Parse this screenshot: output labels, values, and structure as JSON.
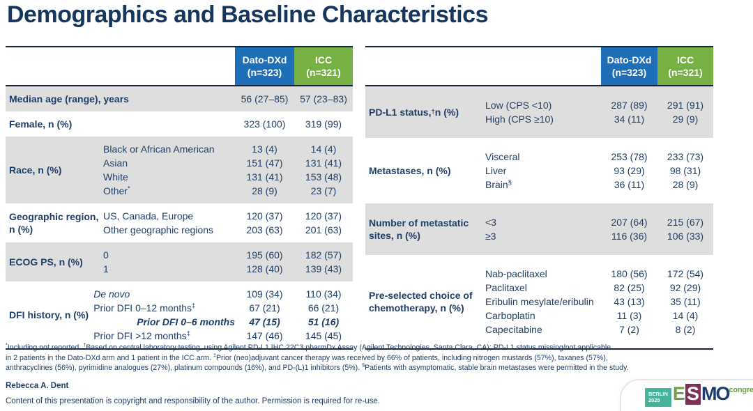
{
  "title": "Demographics and Baseline Characteristics",
  "columns": {
    "arm1_name": "Dato-DXd",
    "arm1_n": "(n=323)",
    "arm2_name": "ICC",
    "arm2_n": "(n=321)"
  },
  "colors": {
    "title_navy": "#17365D",
    "text_navy": "#1F3E66",
    "arm1_blue": "#1F6FB8",
    "arm2_green": "#77B043",
    "row_gray": "#DEDEDE",
    "rule_dark": "#16233B",
    "logo_teal": "#45B29B",
    "logo_green": "#6FA043",
    "logo_plum": "#7E3157",
    "logo_navy": "#1B3C6E"
  },
  "left_table": {
    "rows": [
      {
        "category": "Median age (range), years",
        "shade": true,
        "items": [
          {
            "label": "",
            "v1": "56 (27–85)",
            "v2": "57 (23–83)"
          }
        ]
      },
      {
        "category": "Female, n (%)",
        "shade": false,
        "items": [
          {
            "label": "",
            "v1": "323 (100)",
            "v2": "319 (99)"
          }
        ]
      },
      {
        "category": "Race, n (%)",
        "shade": true,
        "items": [
          {
            "label": "Black or African American",
            "v1": "13 (4)",
            "v2": "14 (4)"
          },
          {
            "label": "Asian",
            "v1": "151 (47)",
            "v2": "131 (41)"
          },
          {
            "label": "White",
            "v1": "131 (41)",
            "v2": "153 (48)"
          },
          {
            "label": "Other*",
            "v1": "28 (9)",
            "v2": "23 (7)"
          }
        ]
      },
      {
        "category": "Geographic region, n (%)",
        "shade": false,
        "items": [
          {
            "label": "US, Canada, Europe",
            "v1": "120 (37)",
            "v2": "120 (37)"
          },
          {
            "label": "Other geographic regions",
            "v1": "203 (63)",
            "v2": "201 (63)"
          }
        ]
      },
      {
        "category": "ECOG PS, n (%)",
        "shade": true,
        "items": [
          {
            "label": "0",
            "v1": "195 (60)",
            "v2": "182 (57)"
          },
          {
            "label": "1",
            "v1": "128 (40)",
            "v2": "139 (43)"
          }
        ]
      },
      {
        "category": "DFI history, n (%)",
        "shade": false,
        "items": [
          {
            "label": "De novo",
            "style": "italic",
            "v1": "109 (34)",
            "v2": "110 (34)"
          },
          {
            "label": "Prior DFI 0–12 months‡",
            "v1": "67 (21)",
            "v2": "66 (21)"
          },
          {
            "label": "Prior DFI 0–6 months",
            "style": "bold-italic",
            "indent": true,
            "v1": "47 (15)",
            "v2": "51 (16)"
          },
          {
            "label": "Prior DFI >12 months‡",
            "v1": "147 (46)",
            "v2": "145 (45)"
          }
        ]
      }
    ]
  },
  "right_table": {
    "rows": [
      {
        "category": "PD-L1 status,† n (%)",
        "shade": true,
        "items": [
          {
            "label": "Low (CPS <10)",
            "v1": "287 (89)",
            "v2": "291 (91)"
          },
          {
            "label": "High (CPS ≥10)",
            "v1": "34 (11)",
            "v2": "29 (9)"
          }
        ]
      },
      {
        "category": "Metastases, n (%)",
        "shade": false,
        "items": [
          {
            "label": "Visceral",
            "v1": "253 (78)",
            "v2": "233 (73)"
          },
          {
            "label": "Liver",
            "v1": "93 (29)",
            "v2": "98 (31)"
          },
          {
            "label": "Brain§",
            "v1": "36 (11)",
            "v2": "28 (9)"
          }
        ]
      },
      {
        "category": "Number of metastatic sites, n (%)",
        "shade": true,
        "items": [
          {
            "label": "<3",
            "v1": "207 (64)",
            "v2": "215 (67)"
          },
          {
            "label": "≥3",
            "v1": "116 (36)",
            "v2": "106 (33)"
          }
        ]
      },
      {
        "category": "Pre-selected choice of chemotherapy, n (%)",
        "shade": false,
        "items": [
          {
            "label": "Nab-paclitaxel",
            "v1": "180 (56)",
            "v2": "172 (54)"
          },
          {
            "label": "Paclitaxel",
            "v1": "82 (25)",
            "v2": "92 (29)"
          },
          {
            "label": "Eribulin mesylate/eribulin",
            "v1": "43 (13)",
            "v2": "35 (11)"
          },
          {
            "label": "Carboplatin",
            "v1": "11 (3)",
            "v2": "14 (4)"
          },
          {
            "label": "Capecitabine",
            "v1": "7 (2)",
            "v2": "8 (2)"
          }
        ]
      }
    ]
  },
  "footnotes": [
    "*Including not reported. †Based on central laboratory testing, using Agilent PD-L1 IHC 22C3 pharmDx Assay (Agilent Technologies, Santa Clara, CA); PD-L1 status missing/not applicable",
    "in 2 patients in the Dato-DXd arm and 1 patient in the ICC arm. ‡Prior (neo)adjuvant cancer therapy was received by 66% of patients, including nitrogen mustards (57%), taxanes (57%),",
    "anthracyclines (56%), pyrimidine analogues (27%), platinum compounds (16%), and PD-(L)1 inhibitors (5%). §Patients with asymptomatic, stable brain metastases were permitted in the study."
  ],
  "author": "Rebecca A. Dent",
  "copyright": "Content of this presentation is copyright and responsibility of the author. Permission is required for re-use.",
  "logo": {
    "venue": "BERLIN",
    "year": "2025",
    "org": "ESMO",
    "suffix": "congress"
  }
}
